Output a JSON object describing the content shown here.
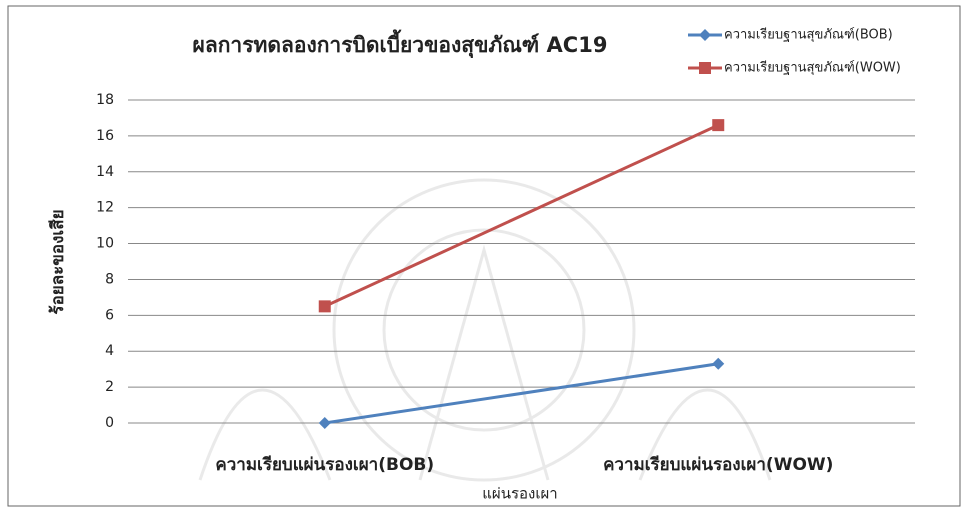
{
  "chart_data": {
    "type": "line",
    "title": "ผลการทดลองการบิดเบี้ยวของสุขภัณฑ์ AC19",
    "x_label": "แผ่นรองเผา",
    "y_label": "ร้อยละของเสีย",
    "categories": [
      "ความเรียบแผ่นรองเผา(BOB)",
      "ความเรียบแผ่นรองเผา(WOW)"
    ],
    "series": [
      {
        "name": "ความเรียบฐานสุขภัณฑ์(BOB)",
        "color": "#4f81bd",
        "marker": "diamond",
        "values": [
          0,
          3.3
        ]
      },
      {
        "name": "ความเรียบฐานสุขภัณฑ์(WOW)",
        "color": "#c0504d",
        "marker": "square",
        "values": [
          6.5,
          16.6
        ]
      }
    ],
    "ylim": [
      0,
      18
    ],
    "yticks": [
      0,
      2,
      4,
      6,
      8,
      10,
      12,
      14,
      16,
      18
    ],
    "grid": true,
    "legend": "top-right"
  }
}
